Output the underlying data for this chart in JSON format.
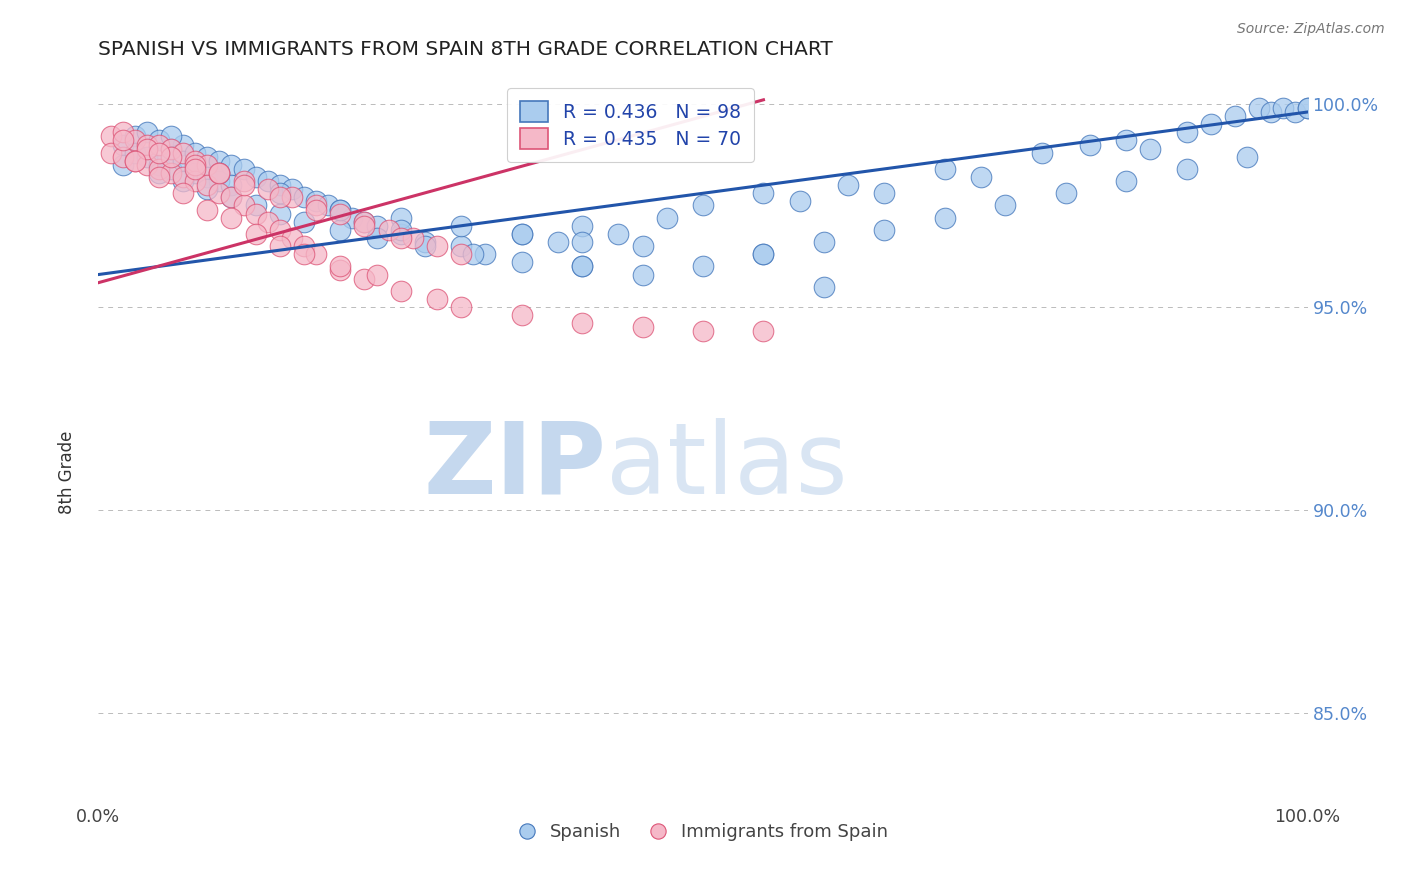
{
  "title": "SPANISH VS IMMIGRANTS FROM SPAIN 8TH GRADE CORRELATION CHART",
  "source": "Source: ZipAtlas.com",
  "ylabel": "8th Grade",
  "xmin": 0.0,
  "xmax": 1.0,
  "ymin": 0.828,
  "ymax": 1.008,
  "legend_blue_r": "R = 0.436",
  "legend_blue_n": "N = 98",
  "legend_pink_r": "R = 0.435",
  "legend_pink_n": "N = 70",
  "blue_face_color": "#aaccee",
  "blue_edge_color": "#4477bb",
  "pink_face_color": "#f5b8c8",
  "pink_edge_color": "#dd5577",
  "watermark_zip_color": "#c5d8ee",
  "watermark_atlas_color": "#c5d8ee",
  "blue_trendline_color": "#2255aa",
  "pink_trendline_color": "#cc3366",
  "ytick_color": "#5588cc",
  "blue_scatter_x": [
    0.02,
    0.02,
    0.03,
    0.03,
    0.04,
    0.04,
    0.05,
    0.05,
    0.06,
    0.06,
    0.07,
    0.07,
    0.08,
    0.08,
    0.09,
    0.09,
    0.1,
    0.1,
    0.11,
    0.11,
    0.12,
    0.13,
    0.14,
    0.15,
    0.16,
    0.17,
    0.18,
    0.19,
    0.2,
    0.21,
    0.22,
    0.23,
    0.25,
    0.27,
    0.3,
    0.32,
    0.35,
    0.38,
    0.4,
    0.43,
    0.47,
    0.5,
    0.55,
    0.58,
    0.62,
    0.65,
    0.7,
    0.73,
    0.78,
    0.82,
    0.85,
    0.87,
    0.9,
    0.92,
    0.94,
    0.96,
    0.97,
    0.98,
    0.99,
    1.0,
    0.05,
    0.07,
    0.09,
    0.11,
    0.13,
    0.15,
    0.17,
    0.2,
    0.23,
    0.27,
    0.31,
    0.35,
    0.4,
    0.45,
    0.5,
    0.55,
    0.6,
    0.65,
    0.7,
    0.75,
    0.8,
    0.85,
    0.9,
    0.95,
    1.0,
    0.25,
    0.3,
    0.35,
    0.4,
    0.45,
    0.2,
    0.55,
    0.4,
    0.6,
    0.25,
    0.15,
    0.1,
    0.06
  ],
  "blue_scatter_y": [
    0.99,
    0.985,
    0.992,
    0.988,
    0.993,
    0.987,
    0.991,
    0.985,
    0.989,
    0.984,
    0.99,
    0.986,
    0.988,
    0.983,
    0.987,
    0.982,
    0.986,
    0.981,
    0.985,
    0.98,
    0.984,
    0.982,
    0.981,
    0.98,
    0.979,
    0.977,
    0.976,
    0.975,
    0.974,
    0.972,
    0.971,
    0.97,
    0.968,
    0.966,
    0.965,
    0.963,
    0.968,
    0.966,
    0.97,
    0.968,
    0.972,
    0.975,
    0.978,
    0.976,
    0.98,
    0.978,
    0.984,
    0.982,
    0.988,
    0.99,
    0.991,
    0.989,
    0.993,
    0.995,
    0.997,
    0.999,
    0.998,
    0.999,
    0.998,
    0.999,
    0.983,
    0.981,
    0.979,
    0.977,
    0.975,
    0.973,
    0.971,
    0.969,
    0.967,
    0.965,
    0.963,
    0.961,
    0.96,
    0.958,
    0.96,
    0.963,
    0.966,
    0.969,
    0.972,
    0.975,
    0.978,
    0.981,
    0.984,
    0.987,
    0.999,
    0.972,
    0.97,
    0.968,
    0.966,
    0.965,
    0.974,
    0.963,
    0.96,
    0.955,
    0.969,
    0.978,
    0.983,
    0.992
  ],
  "pink_scatter_x": [
    0.01,
    0.01,
    0.02,
    0.02,
    0.03,
    0.03,
    0.04,
    0.04,
    0.05,
    0.05,
    0.06,
    0.06,
    0.07,
    0.07,
    0.08,
    0.08,
    0.09,
    0.09,
    0.1,
    0.1,
    0.11,
    0.12,
    0.13,
    0.14,
    0.15,
    0.16,
    0.17,
    0.18,
    0.2,
    0.22,
    0.25,
    0.28,
    0.3,
    0.35,
    0.4,
    0.45,
    0.5,
    0.55,
    0.02,
    0.04,
    0.06,
    0.08,
    0.1,
    0.12,
    0.14,
    0.16,
    0.18,
    0.2,
    0.22,
    0.24,
    0.26,
    0.28,
    0.3,
    0.05,
    0.08,
    0.12,
    0.15,
    0.18,
    0.22,
    0.25,
    0.03,
    0.05,
    0.07,
    0.09,
    0.11,
    0.13,
    0.15,
    0.17,
    0.2,
    0.23
  ],
  "pink_scatter_y": [
    0.992,
    0.988,
    0.993,
    0.987,
    0.991,
    0.986,
    0.99,
    0.985,
    0.99,
    0.984,
    0.989,
    0.983,
    0.988,
    0.982,
    0.986,
    0.981,
    0.985,
    0.98,
    0.983,
    0.978,
    0.977,
    0.975,
    0.973,
    0.971,
    0.969,
    0.967,
    0.965,
    0.963,
    0.959,
    0.957,
    0.954,
    0.952,
    0.95,
    0.948,
    0.946,
    0.945,
    0.944,
    0.944,
    0.991,
    0.989,
    0.987,
    0.985,
    0.983,
    0.981,
    0.979,
    0.977,
    0.975,
    0.973,
    0.971,
    0.969,
    0.967,
    0.965,
    0.963,
    0.988,
    0.984,
    0.98,
    0.977,
    0.974,
    0.97,
    0.967,
    0.986,
    0.982,
    0.978,
    0.974,
    0.972,
    0.968,
    0.965,
    0.963,
    0.96,
    0.958
  ],
  "blue_trend_x0": 0.0,
  "blue_trend_x1": 1.0,
  "blue_trend_y0": 0.958,
  "blue_trend_y1": 0.998,
  "pink_trend_x0": 0.0,
  "pink_trend_x1": 0.55,
  "pink_trend_y0": 0.956,
  "pink_trend_y1": 1.001
}
